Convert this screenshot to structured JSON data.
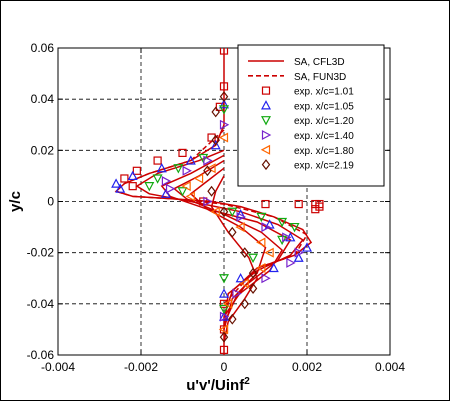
{
  "chart_data": {
    "type": "line",
    "xlabel": "u'v'/Uinf",
    "xlabel_sup": "2",
    "ylabel": "y/c",
    "xlim": [
      -0.004,
      0.004
    ],
    "ylim": [
      -0.06,
      0.06
    ],
    "xticks": [
      -0.004,
      -0.002,
      0,
      0.002,
      0.004
    ],
    "xtick_labels": [
      "-0.004",
      "-0.002",
      "0",
      "0.002",
      "0.004"
    ],
    "yticks": [
      -0.06,
      -0.04,
      -0.02,
      0,
      0.02,
      0.04,
      0.06
    ],
    "ytick_labels": [
      "-0.06",
      "-0.04",
      "-0.02",
      "0",
      "0.02",
      "0.04",
      "0.06"
    ],
    "grid": true,
    "legend_position": "top-right",
    "series": [
      {
        "name": "SA, CFL3D",
        "kind": "line",
        "color": "#cc0000",
        "curves": [
          {
            "x": [
              0.0,
              0.0,
              -0.0002,
              -0.0008,
              -0.0018,
              -0.0024,
              -0.0026,
              -0.0022,
              -0.0012,
              -0.0003,
              0.0004,
              0.0012,
              0.0019,
              0.0021,
              0.0017,
              0.0008,
              0.0002,
              0.0,
              0.0
            ],
            "y": [
              0.06,
              0.03,
              0.022,
              0.016,
              0.011,
              0.007,
              0.004,
              0.002,
              0.001,
              0.0,
              -0.002,
              -0.006,
              -0.011,
              -0.016,
              -0.021,
              -0.026,
              -0.035,
              -0.045,
              -0.06
            ]
          },
          {
            "x": [
              0.0,
              -0.0006,
              -0.0016,
              -0.0021,
              -0.0018,
              -0.0008,
              0.0004,
              0.0013,
              0.0019,
              0.0016,
              0.0008,
              0.0001,
              0.0
            ],
            "y": [
              0.02,
              0.016,
              0.011,
              0.006,
              0.003,
              0.0,
              -0.004,
              -0.009,
              -0.015,
              -0.021,
              -0.027,
              -0.036,
              -0.05
            ]
          },
          {
            "x": [
              0.0,
              -0.0008,
              -0.0015,
              -0.0013,
              -0.0004,
              0.0008,
              0.0016,
              0.0013,
              0.0005,
              0.0
            ],
            "y": [
              0.018,
              0.011,
              0.006,
              0.002,
              -0.003,
              -0.008,
              -0.015,
              -0.023,
              -0.033,
              -0.045
            ]
          },
          {
            "x": [
              0.0,
              -0.0006,
              -0.0012,
              -0.0009,
              0.0,
              0.0009,
              0.0014,
              0.0011,
              0.0003,
              0.0
            ],
            "y": [
              0.016,
              0.01,
              0.005,
              0.001,
              -0.005,
              -0.012,
              -0.019,
              -0.027,
              -0.037,
              -0.048
            ]
          },
          {
            "x": [
              0.0,
              -0.0004,
              -0.0008,
              -0.0004,
              0.0004,
              0.001,
              0.0008,
              0.0002,
              0.0
            ],
            "y": [
              0.013,
              0.008,
              0.003,
              -0.003,
              -0.01,
              -0.018,
              -0.028,
              -0.038,
              -0.05
            ]
          },
          {
            "x": [
              0.0,
              -0.0002,
              -0.0003,
              0.0001,
              0.0006,
              0.0008,
              0.0005,
              0.0001,
              0.0
            ],
            "y": [
              0.01,
              0.004,
              -0.002,
              -0.012,
              -0.022,
              -0.03,
              -0.038,
              -0.047,
              -0.055
            ]
          }
        ]
      },
      {
        "name": "SA, FUN3D",
        "kind": "dashed",
        "color": "#cc0000",
        "curves": [
          {
            "x": [
              0.0,
              -0.0008,
              -0.0018,
              -0.0024,
              -0.0026,
              -0.0022,
              -0.0012,
              0.0,
              0.0012,
              0.002,
              0.0017,
              0.0008,
              0.0
            ],
            "y": [
              0.028,
              0.016,
              0.011,
              0.007,
              0.004,
              0.002,
              0.001,
              -0.001,
              -0.006,
              -0.013,
              -0.021,
              -0.026,
              -0.04
            ]
          }
        ]
      },
      {
        "name": "exp. x/c=1.01",
        "kind": "marker",
        "marker": "square",
        "color": "#cc0000",
        "x": [
          0.0,
          0.0,
          -0.0001,
          -0.0003,
          -0.001,
          -0.0016,
          -0.0021,
          -0.0024,
          -0.0022,
          -0.0005,
          0.001,
          0.0018,
          0.0022,
          0.0023,
          0.0023,
          0.0022,
          0.0,
          0.0,
          0.0
        ],
        "y": [
          0.059,
          0.045,
          0.037,
          0.025,
          0.019,
          0.016,
          0.012,
          0.009,
          0.006,
          0.0,
          -0.001,
          -0.001,
          -0.001,
          -0.001,
          -0.002,
          -0.003,
          -0.04,
          -0.05,
          -0.058
        ]
      },
      {
        "name": "exp. x/c=1.05",
        "kind": "marker",
        "marker": "triangle-up",
        "color": "#2222ee",
        "x": [
          0.0,
          -0.0002,
          -0.0008,
          -0.0015,
          -0.0022,
          -0.0026,
          -0.0025,
          -0.0014,
          0.0004,
          0.0011,
          0.0016,
          0.002,
          0.0018,
          0.0012,
          0.0004,
          0.0,
          0.0
        ],
        "y": [
          0.038,
          0.022,
          0.016,
          0.013,
          0.01,
          0.007,
          0.005,
          0.003,
          -0.005,
          -0.009,
          -0.014,
          -0.018,
          -0.022,
          -0.026,
          -0.03,
          -0.036,
          -0.045
        ]
      },
      {
        "name": "exp. x/c=1.20",
        "kind": "marker",
        "marker": "triangle-down",
        "color": "#11aa11",
        "x": [
          0.0,
          -0.0005,
          -0.0011,
          -0.0016,
          -0.0018,
          -0.001,
          0.0002,
          0.0009,
          0.0014,
          0.0017,
          0.0014,
          0.0007,
          0.0,
          0.0
        ],
        "y": [
          0.036,
          0.017,
          0.013,
          0.009,
          0.006,
          0.004,
          -0.004,
          -0.006,
          -0.008,
          -0.01,
          -0.015,
          -0.022,
          -0.03,
          -0.042
        ]
      },
      {
        "name": "exp. x/c=1.40",
        "kind": "marker",
        "marker": "triangle-right",
        "color": "#7722cc",
        "x": [
          0.0,
          -0.0004,
          -0.0009,
          -0.0014,
          -0.0013,
          -0.0004,
          0.0004,
          0.001,
          0.0015,
          0.0018,
          0.0016,
          0.001,
          0.0003,
          0.0
        ],
        "y": [
          0.03,
          0.016,
          0.012,
          0.008,
          0.005,
          0.0,
          -0.006,
          -0.01,
          -0.014,
          -0.02,
          -0.024,
          -0.03,
          -0.036,
          -0.045
        ]
      },
      {
        "name": "exp. x/c=1.80",
        "kind": "marker",
        "marker": "triangle-left",
        "color": "#ff6600",
        "x": [
          0.0,
          -0.0003,
          -0.0006,
          -0.0009,
          -0.0008,
          -0.0002,
          0.0004,
          0.0009,
          0.0011,
          0.0009,
          0.0005,
          0.0001,
          0.0
        ],
        "y": [
          0.025,
          0.013,
          0.009,
          0.006,
          0.002,
          -0.004,
          -0.01,
          -0.016,
          -0.02,
          -0.026,
          -0.032,
          -0.04,
          -0.05
        ]
      },
      {
        "name": "exp. x/c=2.19",
        "kind": "marker",
        "marker": "diamond",
        "color": "#661100",
        "x": [
          0.0,
          -0.0002,
          -0.0002,
          -0.0004,
          -0.0003,
          0.0,
          0.0002,
          0.0005,
          0.0007,
          0.0007,
          0.0005,
          0.0002,
          0.0
        ],
        "y": [
          0.041,
          0.035,
          0.024,
          0.012,
          0.004,
          -0.004,
          -0.012,
          -0.02,
          -0.028,
          -0.034,
          -0.04,
          -0.046,
          -0.053
        ]
      }
    ]
  }
}
